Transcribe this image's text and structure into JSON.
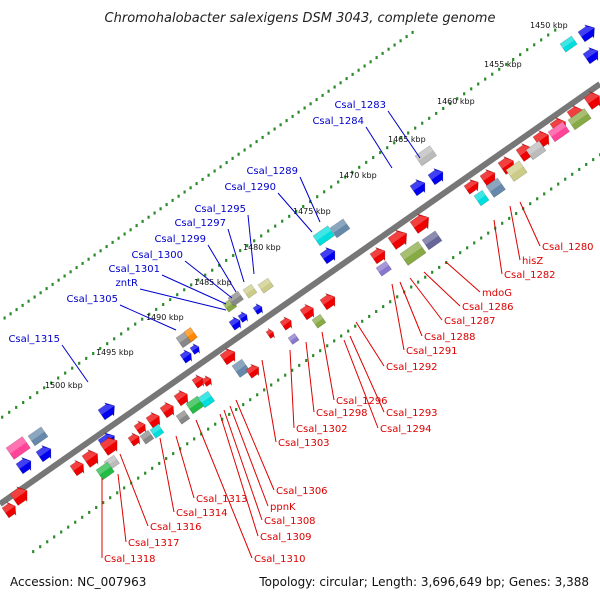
{
  "title": "Chromohalobacter salexigens DSM 3043, complete genome",
  "footer": {
    "accession": "Accession: NC_007963",
    "summary": "Topology: circular; Length: 3,696,649 bp; Genes: 3,388"
  },
  "colors": {
    "backbone": "#777777",
    "tick_dots": "#2a8a2a",
    "forward_label": "#0000cc",
    "reverse_label": "#dd0000",
    "forward_gene": "#0000ee",
    "reverse_gene": "#ee0000"
  },
  "scale_labels": [
    "1450 kbp",
    "1455 kbp",
    "1460 kbp",
    "1465 kbp",
    "1470 kbp",
    "1475 kbp",
    "1480 kbp",
    "1485 kbp",
    "1490 kbp",
    "1495 kbp",
    "1500 kbp"
  ],
  "forward_labels": [
    "Csal_1283",
    "Csal_1284",
    "Csal_1289",
    "Csal_1290",
    "Csal_1295",
    "Csal_1297",
    "Csal_1299",
    "Csal_1300",
    "Csal_1301",
    "zntR",
    "Csal_1305",
    "Csal_1315"
  ],
  "reverse_labels": [
    "Csal_1280",
    "hisZ",
    "Csal_1282",
    "mdoG",
    "Csal_1286",
    "Csal_1287",
    "Csal_1288",
    "Csal_1291",
    "Csal_1292",
    "Csal_1293",
    "Csal_1294",
    "Csal_1296",
    "Csal_1298",
    "Csal_1302",
    "Csal_1303",
    "Csal_1306",
    "ppnK",
    "Csal_1308",
    "Csal_1309",
    "Csal_1310",
    "Csal_1313",
    "Csal_1314",
    "Csal_1316",
    "Csal_1317",
    "Csal_1318"
  ]
}
